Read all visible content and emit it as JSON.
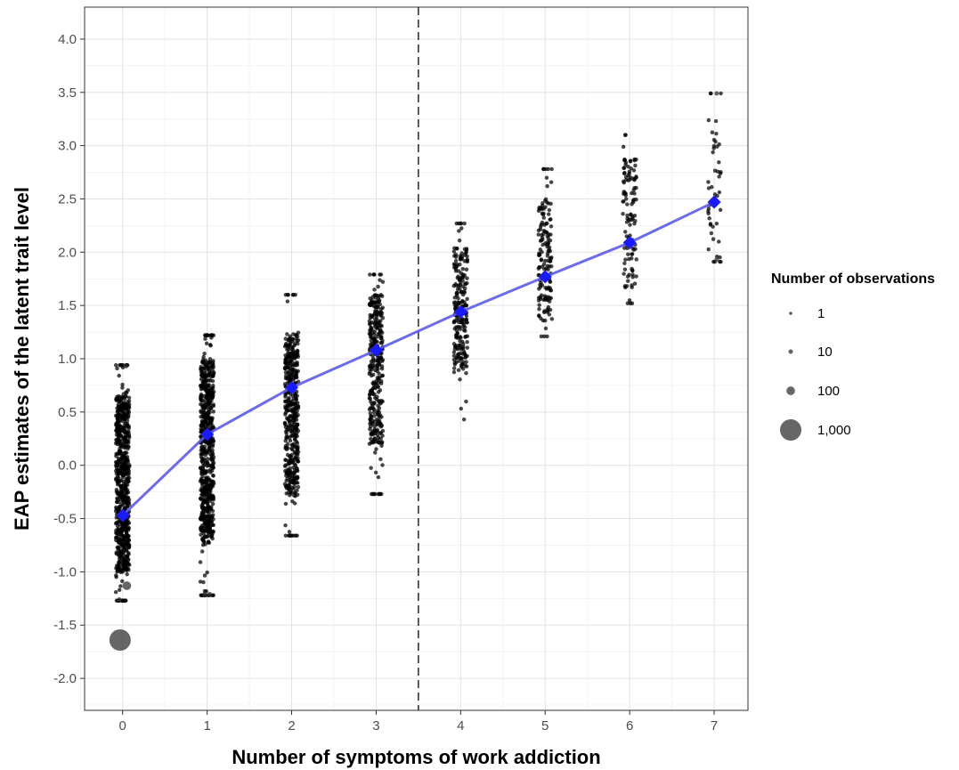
{
  "chart_data": {
    "type": "scatter",
    "xlabel": "Number of symptoms of work addiction",
    "ylabel": "EAP estimates of the latent trait level",
    "xlim": [
      -0.45,
      7.4
    ],
    "ylim": [
      -2.3,
      4.3
    ],
    "x_ticks": [
      0,
      1,
      2,
      3,
      4,
      5,
      6,
      7
    ],
    "x_tick_labels": [
      "0",
      "1",
      "2",
      "3",
      "4",
      "5",
      "6",
      "7"
    ],
    "y_ticks": [
      -2.0,
      -1.5,
      -1.0,
      -0.5,
      0.0,
      0.5,
      1.0,
      1.5,
      2.0,
      2.5,
      3.0,
      3.5,
      4.0
    ],
    "y_tick_labels": [
      "-2.0",
      "-1.5",
      "-1.0",
      "-0.5",
      "0.0",
      "0.5",
      "1.0",
      "1.5",
      "2.0",
      "2.5",
      "3.0",
      "3.5",
      "4.0"
    ],
    "grid": true,
    "reference_line": {
      "x": 3.5,
      "style": "dashed",
      "color": "#333333"
    },
    "mean_line": {
      "color": "#5b5bf0",
      "marker_color": "#1a1aff",
      "x": [
        0,
        1,
        2,
        3,
        4,
        5,
        6,
        7
      ],
      "y": [
        -0.47,
        0.29,
        0.73,
        1.08,
        1.44,
        1.77,
        2.09,
        2.47
      ]
    },
    "point_distribution": [
      {
        "symptoms": 0,
        "min": -1.27,
        "max": 0.94,
        "core_min": -1.0,
        "core_max": 0.65,
        "n": 700
      },
      {
        "symptoms": 1,
        "min": -1.22,
        "max": 1.22,
        "core_min": -0.75,
        "core_max": 1.0,
        "n": 650
      },
      {
        "symptoms": 2,
        "min": -0.66,
        "max": 1.6,
        "core_min": -0.3,
        "core_max": 1.25,
        "n": 450
      },
      {
        "symptoms": 3,
        "min": -0.27,
        "max": 1.79,
        "core_min": 0.2,
        "core_max": 1.6,
        "n": 330
      },
      {
        "symptoms": 4,
        "min": 0.43,
        "max": 2.27,
        "core_min": 0.85,
        "core_max": 2.05,
        "n": 220
      },
      {
        "symptoms": 5,
        "min": 1.21,
        "max": 2.78,
        "core_min": 1.35,
        "core_max": 2.5,
        "n": 150
      },
      {
        "symptoms": 6,
        "min": 1.52,
        "max": 3.1,
        "core_min": 1.65,
        "core_max": 3.0,
        "n": 110
      },
      {
        "symptoms": 7,
        "min": 1.91,
        "max": 3.49,
        "core_min": 1.95,
        "core_max": 3.25,
        "n": 45
      }
    ],
    "large_points": [
      {
        "x": -0.03,
        "y": -1.64,
        "count": 1000
      },
      {
        "x": 0.05,
        "y": -1.13,
        "count": 100
      },
      {
        "x": -0.04,
        "y": -1.26,
        "count": 10
      },
      {
        "x": 0.04,
        "y": 0.93,
        "count": 10
      },
      {
        "x": 7.03,
        "y": 3.49,
        "count": 10
      },
      {
        "x": 7.03,
        "y": 1.93,
        "count": 10
      },
      {
        "x": 0.97,
        "y": -1.21,
        "count": 10
      },
      {
        "x": 1.03,
        "y": -1.21,
        "count": 10
      }
    ],
    "legend": {
      "title": "Number of observations",
      "position": "right",
      "entries": [
        {
          "label": "1",
          "count": 1
        },
        {
          "label": "10",
          "count": 10
        },
        {
          "label": "100",
          "count": 100
        },
        {
          "label": "1,000",
          "count": 1000
        }
      ]
    },
    "point_color": "#000000"
  }
}
